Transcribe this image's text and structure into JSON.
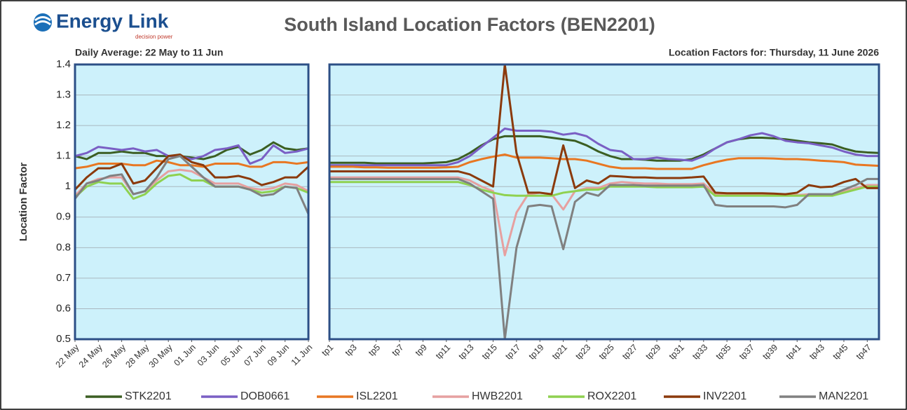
{
  "header": {
    "logo": "Energy Link",
    "logo_tagline": "decision power",
    "title": "South Island Location Factors (BEN2201)"
  },
  "chart_data": [
    {
      "type": "line",
      "subtitle": "Daily Average: 22 May to 11 Jun",
      "y_label": "Location Factor",
      "categories": [
        "22 May",
        null,
        "24 May",
        null,
        "26 May",
        null,
        "28 May",
        null,
        "30 May",
        null,
        "01 Jun",
        null,
        "03 Jun",
        null,
        "05 Jun",
        null,
        "07 Jun",
        null,
        "09 Jun",
        null,
        "11 Jun"
      ],
      "ylim": [
        0.5,
        1.4
      ],
      "yticks": [
        0.5,
        0.6,
        0.7,
        0.8,
        0.9,
        1,
        1.1,
        1.2,
        1.3,
        1.4
      ],
      "grid": true,
      "series": [
        {
          "name": "STK2201",
          "color": "#3b5e22",
          "values": [
            1.1,
            1.09,
            1.11,
            1.11,
            1.115,
            1.11,
            1.11,
            1.1,
            1.1,
            1.1,
            1.095,
            1.09,
            1.1,
            1.12,
            1.13,
            1.105,
            1.12,
            1.145,
            1.125,
            1.12,
            1.125
          ]
        },
        {
          "name": "DOB0661",
          "color": "#7a5fc4",
          "values": [
            1.1,
            1.11,
            1.13,
            1.125,
            1.12,
            1.125,
            1.115,
            1.12,
            1.1,
            1.1,
            1.09,
            1.1,
            1.12,
            1.125,
            1.135,
            1.075,
            1.09,
            1.135,
            1.11,
            1.115,
            1.125
          ]
        },
        {
          "name": "ISL2201",
          "color": "#e87722",
          "values": [
            1.06,
            1.065,
            1.075,
            1.075,
            1.075,
            1.07,
            1.07,
            1.085,
            1.08,
            1.07,
            1.07,
            1.065,
            1.075,
            1.075,
            1.075,
            1.065,
            1.065,
            1.08,
            1.08,
            1.075,
            1.08
          ]
        },
        {
          "name": "HWB2201",
          "color": "#e6a0a0",
          "values": [
            0.97,
            1.01,
            1.025,
            1.03,
            1.03,
            0.975,
            0.985,
            1.02,
            1.05,
            1.055,
            1.05,
            1.03,
            1.01,
            1.01,
            1.01,
            0.995,
            0.99,
            0.995,
            1.01,
            1.005,
            0.985
          ]
        },
        {
          "name": "ROX2201",
          "color": "#8fd150",
          "values": [
            0.965,
            1.0,
            1.015,
            1.01,
            1.01,
            0.96,
            0.975,
            1.01,
            1.035,
            1.04,
            1.02,
            1.02,
            1.0,
            1.0,
            1.0,
            0.99,
            0.98,
            0.985,
            1.0,
            0.995,
            0.98
          ]
        },
        {
          "name": "INV2201",
          "color": "#8b3a0c",
          "values": [
            0.99,
            1.03,
            1.06,
            1.06,
            1.075,
            1.01,
            1.02,
            1.06,
            1.1,
            1.105,
            1.08,
            1.07,
            1.03,
            1.03,
            1.035,
            1.025,
            1.005,
            1.015,
            1.03,
            1.03,
            1.065
          ]
        },
        {
          "name": "MAN2201",
          "color": "#808080",
          "values": [
            0.96,
            1.01,
            1.02,
            1.035,
            1.04,
            0.975,
            0.985,
            1.03,
            1.09,
            1.1,
            1.065,
            1.03,
            1.0,
            1.0,
            1.0,
            0.99,
            0.97,
            0.975,
            1.0,
            0.995,
            0.91
          ]
        }
      ]
    },
    {
      "type": "line",
      "subtitle": "Location Factors for: Thursday, 11 June 2026",
      "categories": [
        "tp1",
        null,
        "tp3",
        null,
        "tp5",
        null,
        "tp7",
        null,
        "tp9",
        null,
        "tp11",
        null,
        "tp13",
        null,
        "tp15",
        null,
        "tp17",
        null,
        "tp19",
        null,
        "tp21",
        null,
        "tp23",
        null,
        "tp25",
        null,
        "tp27",
        null,
        "tp29",
        null,
        "tp31",
        null,
        "tp33",
        null,
        "tp35",
        null,
        "tp37",
        null,
        "tp39",
        null,
        "tp41",
        null,
        "tp43",
        null,
        "tp45",
        null,
        "tp47",
        null
      ],
      "ylim": [
        0.5,
        1.4
      ],
      "series": [
        {
          "values": [
            1.078,
            1.078,
            1.078,
            1.078,
            1.076,
            1.076,
            1.076,
            1.076,
            1.076,
            1.078,
            1.08,
            1.09,
            1.11,
            1.135,
            1.155,
            1.165,
            1.165,
            1.165,
            1.165,
            1.16,
            1.155,
            1.15,
            1.135,
            1.115,
            1.1,
            1.09,
            1.09,
            1.088,
            1.085,
            1.085,
            1.085,
            1.09,
            1.105,
            1.125,
            1.145,
            1.155,
            1.16,
            1.16,
            1.158,
            1.155,
            1.15,
            1.145,
            1.142,
            1.138,
            1.125,
            1.115,
            1.112,
            1.11
          ]
        },
        {
          "values": [
            1.07,
            1.07,
            1.07,
            1.07,
            1.07,
            1.07,
            1.07,
            1.07,
            1.07,
            1.07,
            1.07,
            1.08,
            1.1,
            1.13,
            1.16,
            1.19,
            1.183,
            1.183,
            1.183,
            1.18,
            1.17,
            1.175,
            1.165,
            1.14,
            1.12,
            1.115,
            1.09,
            1.09,
            1.095,
            1.09,
            1.088,
            1.085,
            1.1,
            1.125,
            1.145,
            1.155,
            1.168,
            1.175,
            1.165,
            1.15,
            1.145,
            1.142,
            1.135,
            1.128,
            1.115,
            1.105,
            1.1,
            1.1
          ]
        },
        {
          "values": [
            1.065,
            1.065,
            1.065,
            1.063,
            1.063,
            1.062,
            1.062,
            1.062,
            1.062,
            1.062,
            1.063,
            1.065,
            1.08,
            1.09,
            1.098,
            1.105,
            1.095,
            1.095,
            1.095,
            1.093,
            1.09,
            1.09,
            1.085,
            1.075,
            1.065,
            1.06,
            1.06,
            1.06,
            1.058,
            1.058,
            1.058,
            1.058,
            1.07,
            1.08,
            1.088,
            1.093,
            1.093,
            1.093,
            1.092,
            1.09,
            1.09,
            1.088,
            1.085,
            1.083,
            1.08,
            1.072,
            1.07,
            1.068
          ]
        },
        {
          "values": [
            1.03,
            1.03,
            1.03,
            1.03,
            1.03,
            1.03,
            1.03,
            1.03,
            1.03,
            1.03,
            1.03,
            1.03,
            1.02,
            1.0,
            0.985,
            0.775,
            0.915,
            0.975,
            0.98,
            0.975,
            0.925,
            0.985,
            0.995,
            0.995,
            1.01,
            1.015,
            1.012,
            1.01,
            1.01,
            1.008,
            1.008,
            1.008,
            1.01,
            0.975,
            0.975,
            0.975,
            0.975,
            0.975,
            0.975,
            0.975,
            0.972,
            0.975,
            0.975,
            0.972,
            0.985,
            0.995,
            1.005,
            1.005
          ]
        },
        {
          "values": [
            1.015,
            1.015,
            1.015,
            1.015,
            1.015,
            1.015,
            1.015,
            1.015,
            1.015,
            1.015,
            1.015,
            1.015,
            1.005,
            0.99,
            0.98,
            0.972,
            0.97,
            0.97,
            0.97,
            0.97,
            0.98,
            0.985,
            0.99,
            0.99,
            1.0,
            1.0,
            1.0,
            1.0,
            0.998,
            0.998,
            0.998,
            0.998,
            1.0,
            0.97,
            0.97,
            0.97,
            0.97,
            0.97,
            0.97,
            0.97,
            0.97,
            0.97,
            0.97,
            0.97,
            0.98,
            0.99,
            1.0,
            1.0
          ]
        },
        {
          "values": [
            1.05,
            1.05,
            1.05,
            1.05,
            1.05,
            1.05,
            1.05,
            1.05,
            1.05,
            1.05,
            1.05,
            1.05,
            1.04,
            1.02,
            1.0,
            1.4,
            1.11,
            0.98,
            0.98,
            0.975,
            1.135,
            0.995,
            1.02,
            1.01,
            1.035,
            1.033,
            1.03,
            1.03,
            1.028,
            1.028,
            1.028,
            1.03,
            1.033,
            0.98,
            0.978,
            0.978,
            0.978,
            0.978,
            0.977,
            0.975,
            0.98,
            1.005,
            0.998,
            1.0,
            1.015,
            1.025,
            0.995,
            0.995
          ]
        },
        {
          "values": [
            1.025,
            1.025,
            1.025,
            1.025,
            1.025,
            1.025,
            1.025,
            1.025,
            1.025,
            1.025,
            1.025,
            1.025,
            1.01,
            0.985,
            0.96,
            0.5,
            0.8,
            0.935,
            0.94,
            0.935,
            0.795,
            0.95,
            0.98,
            0.97,
            1.005,
            1.005,
            1.005,
            1.003,
            1.003,
            1.003,
            1.003,
            1.003,
            1.005,
            0.94,
            0.935,
            0.935,
            0.935,
            0.935,
            0.935,
            0.932,
            0.94,
            0.975,
            0.975,
            0.975,
            0.99,
            1.005,
            1.025,
            1.025
          ]
        }
      ]
    }
  ]
}
